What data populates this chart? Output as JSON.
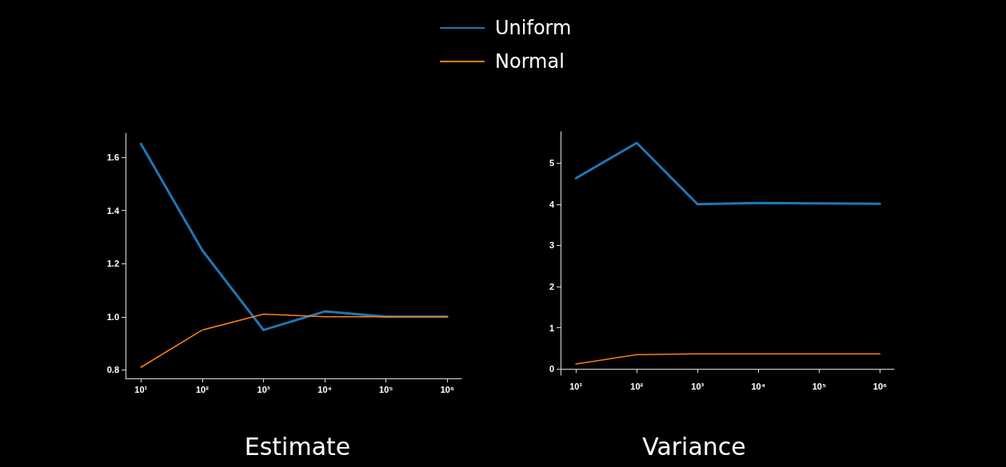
{
  "chart_data": [
    {
      "type": "line",
      "title": "Estimate",
      "x": [
        10,
        100,
        1000,
        10000,
        100000,
        1000000
      ],
      "log": "x",
      "xlim": [
        5.6,
        1700000
      ],
      "xticks": [
        {
          "value": 10,
          "label": "10¹"
        },
        {
          "value": 100,
          "label": "10²"
        },
        {
          "value": 1000,
          "label": "10³"
        },
        {
          "value": 10000,
          "label": "10⁴"
        },
        {
          "value": 100000,
          "label": "10⁵"
        },
        {
          "value": 1000000,
          "label": "10⁶"
        }
      ],
      "ylim": [
        0.768,
        1.69
      ],
      "yticks": [
        0.8,
        {
          "value": 1.0,
          "label": "1.0"
        },
        1.2,
        1.4,
        1.6
      ],
      "grid": false,
      "legend": "top right",
      "series": [
        {
          "name": "Uniform",
          "color": "#1f77b4",
          "values": [
            1.65,
            1.25,
            0.95,
            1.02,
            1.0,
            1.0
          ]
        },
        {
          "name": "Normal",
          "color": "#ff7f0e",
          "values": [
            0.81,
            0.95,
            1.01,
            1.0,
            1.0,
            1.0
          ]
        }
      ]
    },
    {
      "type": "line",
      "title": "Variance",
      "x": [
        10,
        100,
        1000,
        10000,
        100000,
        1000000
      ],
      "log": "x",
      "xlim": [
        5.6,
        1700000
      ],
      "xticks": [
        {
          "value": 10,
          "label": "10¹"
        },
        {
          "value": 100,
          "label": "10²"
        },
        {
          "value": 1000,
          "label": "10³"
        },
        {
          "value": 10000,
          "label": "10⁴"
        },
        {
          "value": 100000,
          "label": "10⁵"
        },
        {
          "value": 1000000,
          "label": "10⁶"
        }
      ],
      "ylim": [
        -0.15,
        5.76
      ],
      "yticks": [
        0,
        1,
        2,
        3,
        4,
        5
      ],
      "grid": false,
      "series": [
        {
          "color": "#1f77b4",
          "values": [
            4.63,
            5.49,
            4.0,
            4.03,
            4.02,
            4.01
          ]
        },
        {
          "color": "#ff7f0e",
          "values": [
            0.12,
            0.35,
            0.37,
            0.37,
            0.37,
            0.37
          ]
        }
      ]
    }
  ]
}
